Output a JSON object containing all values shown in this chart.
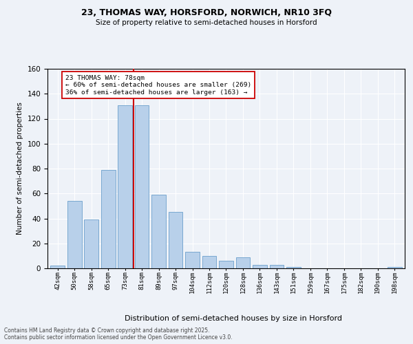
{
  "title1": "23, THOMAS WAY, HORSFORD, NORWICH, NR10 3FQ",
  "title2": "Size of property relative to semi-detached houses in Horsford",
  "xlabel": "Distribution of semi-detached houses by size in Horsford",
  "ylabel": "Number of semi-detached properties",
  "categories": [
    "42sqm",
    "50sqm",
    "58sqm",
    "65sqm",
    "73sqm",
    "81sqm",
    "89sqm",
    "97sqm",
    "104sqm",
    "112sqm",
    "120sqm",
    "128sqm",
    "136sqm",
    "143sqm",
    "151sqm",
    "159sqm",
    "167sqm",
    "175sqm",
    "182sqm",
    "190sqm",
    "198sqm"
  ],
  "values": [
    2,
    54,
    39,
    79,
    131,
    131,
    59,
    45,
    13,
    10,
    6,
    9,
    3,
    3,
    1,
    0,
    0,
    0,
    0,
    0,
    1
  ],
  "bar_color": "#b8d0ea",
  "bar_edge_color": "#6a9fcb",
  "property_line_x": 4.5,
  "annotation_text": "23 THOMAS WAY: 78sqm\n← 60% of semi-detached houses are smaller (269)\n36% of semi-detached houses are larger (163) →",
  "red_line_color": "#cc0000",
  "annotation_box_facecolor": "#ffffff",
  "annotation_box_edgecolor": "#cc0000",
  "ylim": [
    0,
    160
  ],
  "background_color": "#eef2f8",
  "grid_color": "#ffffff",
  "footer": "Contains HM Land Registry data © Crown copyright and database right 2025.\nContains public sector information licensed under the Open Government Licence v3.0."
}
